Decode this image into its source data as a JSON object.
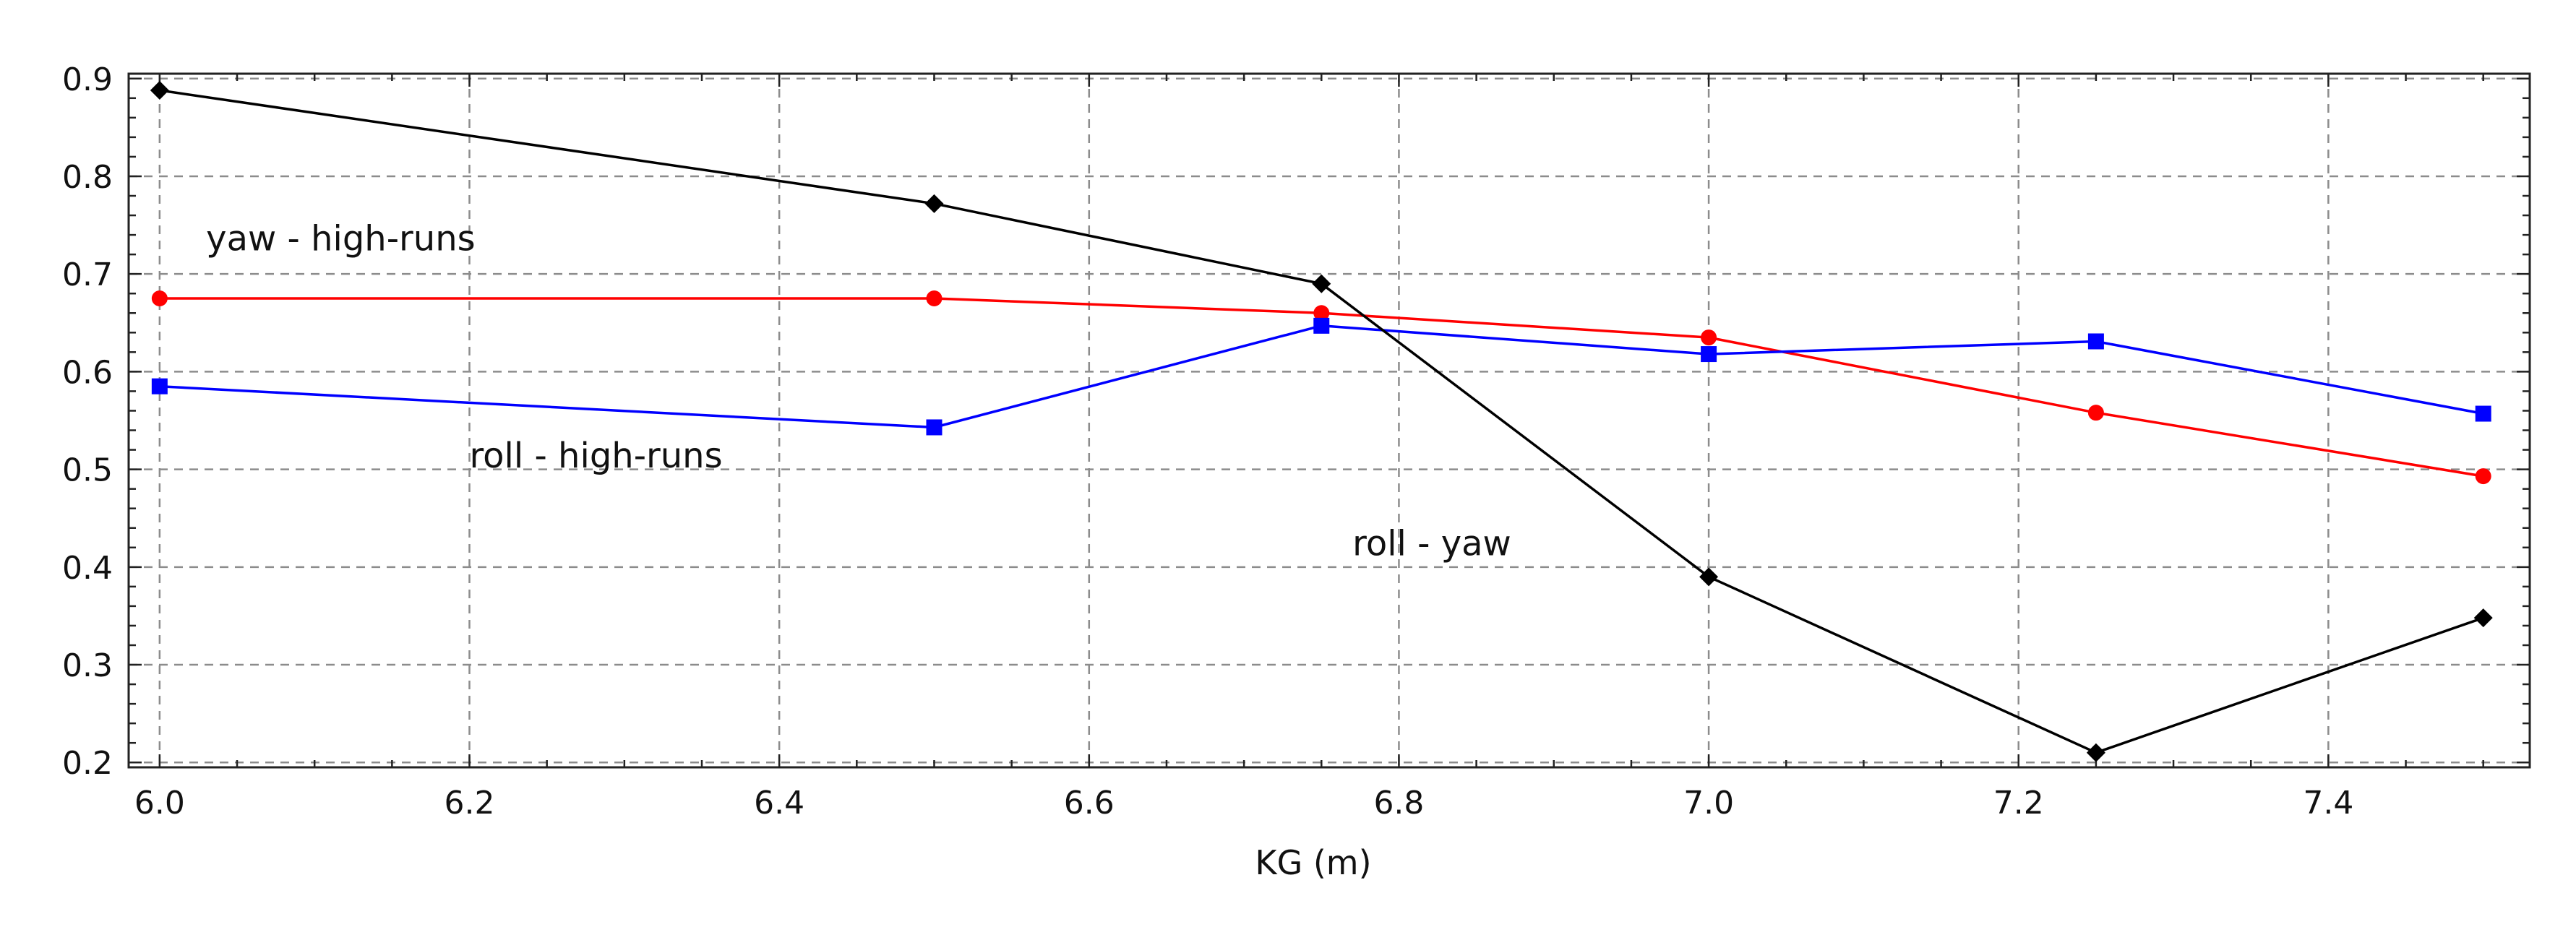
{
  "chart_data": {
    "type": "line",
    "title": "",
    "xlabel": "KG (m)",
    "ylabel": "",
    "xlim": [
      5.98,
      7.53
    ],
    "ylim": [
      0.195,
      0.905
    ],
    "xticks": [
      6.0,
      6.2,
      6.4,
      6.6,
      6.8,
      7.0,
      7.2,
      7.4
    ],
    "xtick_labels": [
      "6.0",
      "6.2",
      "6.4",
      "6.6",
      "6.8",
      "7.0",
      "7.2",
      "7.4"
    ],
    "yticks": [
      0.2,
      0.3,
      0.4,
      0.5,
      0.6,
      0.7,
      0.8,
      0.9
    ],
    "ytick_labels": [
      "0.2",
      "0.3",
      "0.4",
      "0.5",
      "0.6",
      "0.7",
      "0.8",
      "0.9"
    ],
    "grid": true,
    "x": [
      6.0,
      6.5,
      6.75,
      7.0,
      7.25,
      7.5
    ],
    "series": [
      {
        "name": "yaw - high-runs",
        "color": "#ff0000",
        "marker": "circle",
        "values": [
          0.675,
          0.675,
          0.66,
          0.635,
          0.558,
          0.493
        ]
      },
      {
        "name": "roll - high-runs",
        "color": "#0000ff",
        "marker": "square",
        "values": [
          0.585,
          0.543,
          0.647,
          0.618,
          0.631,
          0.557
        ]
      },
      {
        "name": "roll - yaw",
        "color": "#000000",
        "marker": "diamond",
        "values": [
          0.888,
          0.772,
          0.69,
          0.39,
          0.21,
          0.348
        ]
      }
    ],
    "annotations": [
      {
        "text": "yaw - high-runs",
        "x": 6.03,
        "y": 0.724
      },
      {
        "text": "roll - high-runs",
        "x": 6.2,
        "y": 0.502
      },
      {
        "text": "roll - yaw",
        "x": 6.77,
        "y": 0.412
      }
    ]
  }
}
